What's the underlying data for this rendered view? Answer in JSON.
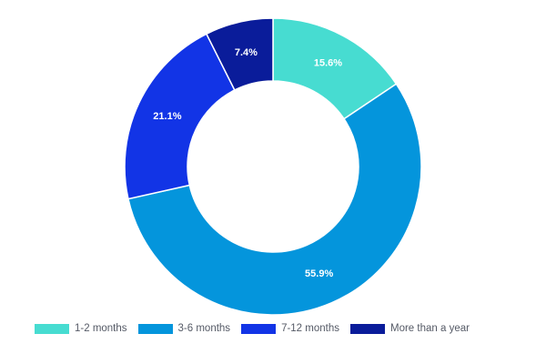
{
  "chart_data": {
    "type": "pie",
    "variant": "donut",
    "title": "",
    "categories": [
      "1-2 months",
      "3-6 months",
      "7-12 months",
      "More than a year"
    ],
    "values": [
      15.6,
      55.9,
      21.1,
      7.4
    ],
    "value_labels": [
      "15.6%",
      "55.9%",
      "21.1%",
      "7.4%"
    ],
    "unit": "%",
    "colors": [
      "#47dcd1",
      "#0495dc",
      "#1234e6",
      "#0a1c9a"
    ],
    "start_angle_deg": 0,
    "direction": "clockwise",
    "legend": {
      "position": "bottom",
      "entries": [
        "1-2 months",
        "3-6 months",
        "7-12 months",
        "More than a year"
      ]
    }
  }
}
